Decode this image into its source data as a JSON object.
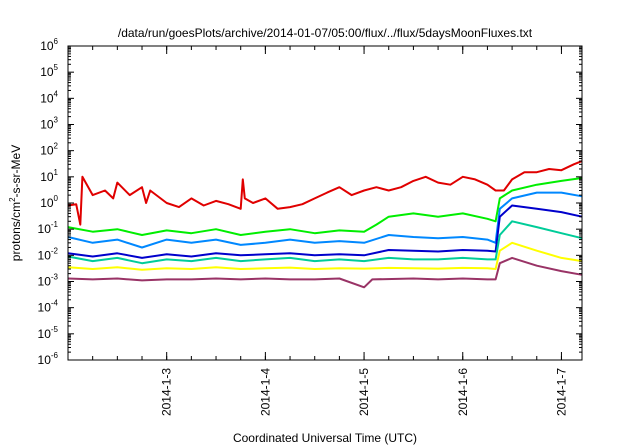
{
  "chart_data": {
    "type": "line",
    "title": "/data/run/goesPlots/archive/2014-01-07/05:00/flux/../flux/5daysMoonFluxes.txt",
    "xlabel": "Coordinated Universal Time (UTC)",
    "ylabel": {
      "pre": "protons/cm",
      "sup": "2",
      "post": "-s-sr-MeV"
    },
    "yscale": "log",
    "ylim": [
      1e-06,
      1000000.0
    ],
    "yticks": [
      {
        "base": "10",
        "exp": "-6",
        "value": 1e-06
      },
      {
        "base": "10",
        "exp": "-5",
        "value": 1e-05
      },
      {
        "base": "10",
        "exp": "-4",
        "value": 0.0001
      },
      {
        "base": "10",
        "exp": "-3",
        "value": 0.001
      },
      {
        "base": "10",
        "exp": "-2",
        "value": 0.01
      },
      {
        "base": "10",
        "exp": "-1",
        "value": 0.1
      },
      {
        "base": "10",
        "exp": "0",
        "value": 1
      },
      {
        "base": "10",
        "exp": "1",
        "value": 10.0
      },
      {
        "base": "10",
        "exp": "2",
        "value": 100.0
      },
      {
        "base": "10",
        "exp": "3",
        "value": 1000.0
      },
      {
        "base": "10",
        "exp": "4",
        "value": 10000.0
      },
      {
        "base": "10",
        "exp": "5",
        "value": 100000.0
      },
      {
        "base": "10",
        "exp": "6",
        "value": 1000000.0
      }
    ],
    "xlim": [
      "2014-01-02T00:00",
      "2014-01-07T05:00"
    ],
    "xticks": [
      "2014-1-3",
      "2014-1-4",
      "2014-1-5",
      "2014-1-6",
      "2014-1-7"
    ],
    "grid": false,
    "series": [
      {
        "color": "#e00000",
        "points": [
          [
            "2014-01-02T00:00",
            0.8
          ],
          [
            "2014-01-02T02:00",
            0.9
          ],
          [
            "2014-01-02T03:00",
            0.15
          ],
          [
            "2014-01-02T03:30",
            10
          ],
          [
            "2014-01-02T06:00",
            2
          ],
          [
            "2014-01-02T09:00",
            3
          ],
          [
            "2014-01-02T11:00",
            1.5
          ],
          [
            "2014-01-02T12:00",
            6
          ],
          [
            "2014-01-02T15:00",
            2
          ],
          [
            "2014-01-02T18:00",
            4
          ],
          [
            "2014-01-02T19:00",
            1
          ],
          [
            "2014-01-02T20:00",
            3
          ],
          [
            "2014-01-03T00:00",
            1
          ],
          [
            "2014-01-03T03:00",
            0.7
          ],
          [
            "2014-01-03T06:00",
            1.5
          ],
          [
            "2014-01-03T09:00",
            0.8
          ],
          [
            "2014-01-03T12:00",
            1.2
          ],
          [
            "2014-01-03T15:00",
            0.9
          ],
          [
            "2014-01-03T18:00",
            0.6
          ],
          [
            "2014-01-03T18:30",
            8
          ],
          [
            "2014-01-03T19:00",
            1.5
          ],
          [
            "2014-01-03T21:00",
            1
          ],
          [
            "2014-01-04T00:00",
            1.5
          ],
          [
            "2014-01-04T03:00",
            0.6
          ],
          [
            "2014-01-04T06:00",
            0.7
          ],
          [
            "2014-01-04T09:00",
            0.9
          ],
          [
            "2014-01-04T12:00",
            1.5
          ],
          [
            "2014-01-04T15:00",
            2.5
          ],
          [
            "2014-01-04T18:00",
            4
          ],
          [
            "2014-01-04T21:00",
            2
          ],
          [
            "2014-01-05T00:00",
            3
          ],
          [
            "2014-01-05T03:00",
            4
          ],
          [
            "2014-01-05T06:00",
            3
          ],
          [
            "2014-01-05T09:00",
            4
          ],
          [
            "2014-01-05T12:00",
            7
          ],
          [
            "2014-01-05T15:00",
            10
          ],
          [
            "2014-01-05T18:00",
            6
          ],
          [
            "2014-01-05T21:00",
            5
          ],
          [
            "2014-01-06T00:00",
            10
          ],
          [
            "2014-01-06T03:00",
            8
          ],
          [
            "2014-01-06T06:00",
            5
          ],
          [
            "2014-01-06T08:00",
            3
          ],
          [
            "2014-01-06T10:00",
            3
          ],
          [
            "2014-01-06T12:00",
            8
          ],
          [
            "2014-01-06T15:00",
            15
          ],
          [
            "2014-01-06T18:00",
            15
          ],
          [
            "2014-01-06T21:00",
            20
          ],
          [
            "2014-01-07T00:00",
            18
          ],
          [
            "2014-01-07T03:00",
            30
          ],
          [
            "2014-01-07T05:00",
            40
          ]
        ]
      },
      {
        "color": "#00ee00",
        "points": [
          [
            "2014-01-02T00:00",
            0.12
          ],
          [
            "2014-01-02T06:00",
            0.08
          ],
          [
            "2014-01-02T12:00",
            0.1
          ],
          [
            "2014-01-02T18:00",
            0.06
          ],
          [
            "2014-01-03T00:00",
            0.09
          ],
          [
            "2014-01-03T06:00",
            0.07
          ],
          [
            "2014-01-03T12:00",
            0.1
          ],
          [
            "2014-01-03T18:00",
            0.06
          ],
          [
            "2014-01-04T00:00",
            0.08
          ],
          [
            "2014-01-04T06:00",
            0.1
          ],
          [
            "2014-01-04T12:00",
            0.07
          ],
          [
            "2014-01-04T18:00",
            0.09
          ],
          [
            "2014-01-05T00:00",
            0.08
          ],
          [
            "2014-01-05T03:00",
            0.15
          ],
          [
            "2014-01-05T06:00",
            0.3
          ],
          [
            "2014-01-05T12:00",
            0.4
          ],
          [
            "2014-01-05T18:00",
            0.3
          ],
          [
            "2014-01-06T00:00",
            0.4
          ],
          [
            "2014-01-06T06:00",
            0.25
          ],
          [
            "2014-01-06T08:00",
            0.2
          ],
          [
            "2014-01-06T09:00",
            1.5
          ],
          [
            "2014-01-06T12:00",
            3
          ],
          [
            "2014-01-06T18:00",
            5
          ],
          [
            "2014-01-07T00:00",
            7
          ],
          [
            "2014-01-07T05:00",
            9
          ]
        ]
      },
      {
        "color": "#0088ff",
        "points": [
          [
            "2014-01-02T00:00",
            0.05
          ],
          [
            "2014-01-02T06:00",
            0.03
          ],
          [
            "2014-01-02T12:00",
            0.04
          ],
          [
            "2014-01-02T18:00",
            0.02
          ],
          [
            "2014-01-03T00:00",
            0.04
          ],
          [
            "2014-01-03T06:00",
            0.03
          ],
          [
            "2014-01-03T12:00",
            0.04
          ],
          [
            "2014-01-03T18:00",
            0.025
          ],
          [
            "2014-01-04T00:00",
            0.03
          ],
          [
            "2014-01-04T06:00",
            0.04
          ],
          [
            "2014-01-04T12:00",
            0.03
          ],
          [
            "2014-01-04T18:00",
            0.035
          ],
          [
            "2014-01-05T00:00",
            0.03
          ],
          [
            "2014-01-05T06:00",
            0.06
          ],
          [
            "2014-01-05T12:00",
            0.05
          ],
          [
            "2014-01-05T18:00",
            0.045
          ],
          [
            "2014-01-06T00:00",
            0.05
          ],
          [
            "2014-01-06T06:00",
            0.04
          ],
          [
            "2014-01-06T08:00",
            0.03
          ],
          [
            "2014-01-06T09:00",
            0.6
          ],
          [
            "2014-01-06T12:00",
            1.5
          ],
          [
            "2014-01-06T18:00",
            2.5
          ],
          [
            "2014-01-07T00:00",
            2.5
          ],
          [
            "2014-01-07T05:00",
            1.8
          ]
        ]
      },
      {
        "color": "#0000cc",
        "points": [
          [
            "2014-01-02T00:00",
            0.012
          ],
          [
            "2014-01-02T06:00",
            0.009
          ],
          [
            "2014-01-02T12:00",
            0.012
          ],
          [
            "2014-01-02T18:00",
            0.008
          ],
          [
            "2014-01-03T00:00",
            0.011
          ],
          [
            "2014-01-03T06:00",
            0.009
          ],
          [
            "2014-01-03T12:00",
            0.012
          ],
          [
            "2014-01-03T18:00",
            0.01
          ],
          [
            "2014-01-04T00:00",
            0.011
          ],
          [
            "2014-01-04T06:00",
            0.012
          ],
          [
            "2014-01-04T12:00",
            0.01
          ],
          [
            "2014-01-04T18:00",
            0.011
          ],
          [
            "2014-01-05T00:00",
            0.01
          ],
          [
            "2014-01-05T06:00",
            0.016
          ],
          [
            "2014-01-05T12:00",
            0.015
          ],
          [
            "2014-01-05T18:00",
            0.014
          ],
          [
            "2014-01-06T00:00",
            0.016
          ],
          [
            "2014-01-06T06:00",
            0.015
          ],
          [
            "2014-01-06T08:00",
            0.014
          ],
          [
            "2014-01-06T09:00",
            0.3
          ],
          [
            "2014-01-06T12:00",
            0.8
          ],
          [
            "2014-01-06T18:00",
            0.6
          ],
          [
            "2014-01-07T00:00",
            0.45
          ],
          [
            "2014-01-07T05:00",
            0.3
          ]
        ]
      },
      {
        "color": "#00cc99",
        "points": [
          [
            "2014-01-02T00:00",
            0.009
          ],
          [
            "2014-01-02T06:00",
            0.006
          ],
          [
            "2014-01-02T12:00",
            0.008
          ],
          [
            "2014-01-02T18:00",
            0.005
          ],
          [
            "2014-01-03T00:00",
            0.007
          ],
          [
            "2014-01-03T06:00",
            0.006
          ],
          [
            "2014-01-03T12:00",
            0.008
          ],
          [
            "2014-01-03T18:00",
            0.006
          ],
          [
            "2014-01-04T00:00",
            0.007
          ],
          [
            "2014-01-04T06:00",
            0.008
          ],
          [
            "2014-01-04T12:00",
            0.006
          ],
          [
            "2014-01-04T18:00",
            0.007
          ],
          [
            "2014-01-05T00:00",
            0.006
          ],
          [
            "2014-01-05T06:00",
            0.008
          ],
          [
            "2014-01-05T12:00",
            0.007
          ],
          [
            "2014-01-05T18:00",
            0.007
          ],
          [
            "2014-01-06T00:00",
            0.008
          ],
          [
            "2014-01-06T06:00",
            0.007
          ],
          [
            "2014-01-06T08:00",
            0.007
          ],
          [
            "2014-01-06T09:00",
            0.06
          ],
          [
            "2014-01-06T12:00",
            0.2
          ],
          [
            "2014-01-06T18:00",
            0.12
          ],
          [
            "2014-01-07T00:00",
            0.07
          ],
          [
            "2014-01-07T05:00",
            0.045
          ]
        ]
      },
      {
        "color": "#ffff00",
        "points": [
          [
            "2014-01-02T00:00",
            0.0035
          ],
          [
            "2014-01-02T06:00",
            0.003
          ],
          [
            "2014-01-02T12:00",
            0.0035
          ],
          [
            "2014-01-02T18:00",
            0.0028
          ],
          [
            "2014-01-03T00:00",
            0.0032
          ],
          [
            "2014-01-03T06:00",
            0.003
          ],
          [
            "2014-01-03T12:00",
            0.0035
          ],
          [
            "2014-01-03T18:00",
            0.003
          ],
          [
            "2014-01-04T00:00",
            0.0032
          ],
          [
            "2014-01-04T06:00",
            0.0034
          ],
          [
            "2014-01-04T12:00",
            0.003
          ],
          [
            "2014-01-04T18:00",
            0.0032
          ],
          [
            "2014-01-05T00:00",
            0.0031
          ],
          [
            "2014-01-05T06:00",
            0.0033
          ],
          [
            "2014-01-05T12:00",
            0.0032
          ],
          [
            "2014-01-05T18:00",
            0.0031
          ],
          [
            "2014-01-06T00:00",
            0.0033
          ],
          [
            "2014-01-06T06:00",
            0.0032
          ],
          [
            "2014-01-06T08:00",
            0.003
          ],
          [
            "2014-01-06T09:00",
            0.015
          ],
          [
            "2014-01-06T12:00",
            0.03
          ],
          [
            "2014-01-06T18:00",
            0.015
          ],
          [
            "2014-01-07T00:00",
            0.008
          ],
          [
            "2014-01-07T05:00",
            0.006
          ]
        ]
      },
      {
        "color": "#993366",
        "points": [
          [
            "2014-01-02T00:00",
            0.0013
          ],
          [
            "2014-01-02T06:00",
            0.0012
          ],
          [
            "2014-01-02T12:00",
            0.0013
          ],
          [
            "2014-01-02T18:00",
            0.0011
          ],
          [
            "2014-01-03T00:00",
            0.0012
          ],
          [
            "2014-01-03T06:00",
            0.0012
          ],
          [
            "2014-01-03T12:00",
            0.0013
          ],
          [
            "2014-01-03T18:00",
            0.0012
          ],
          [
            "2014-01-04T00:00",
            0.0013
          ],
          [
            "2014-01-04T06:00",
            0.0012
          ],
          [
            "2014-01-04T12:00",
            0.0012
          ],
          [
            "2014-01-04T18:00",
            0.0013
          ],
          [
            "2014-01-05T00:00",
            0.0006
          ],
          [
            "2014-01-05T02:00",
            0.0012
          ],
          [
            "2014-01-05T12:00",
            0.0013
          ],
          [
            "2014-01-05T18:00",
            0.0012
          ],
          [
            "2014-01-06T00:00",
            0.0013
          ],
          [
            "2014-01-06T06:00",
            0.0012
          ],
          [
            "2014-01-06T08:00",
            0.0012
          ],
          [
            "2014-01-06T09:00",
            0.005
          ],
          [
            "2014-01-06T12:00",
            0.008
          ],
          [
            "2014-01-06T18:00",
            0.004
          ],
          [
            "2014-01-07T00:00",
            0.0025
          ],
          [
            "2014-01-07T05:00",
            0.0018
          ]
        ]
      }
    ]
  }
}
